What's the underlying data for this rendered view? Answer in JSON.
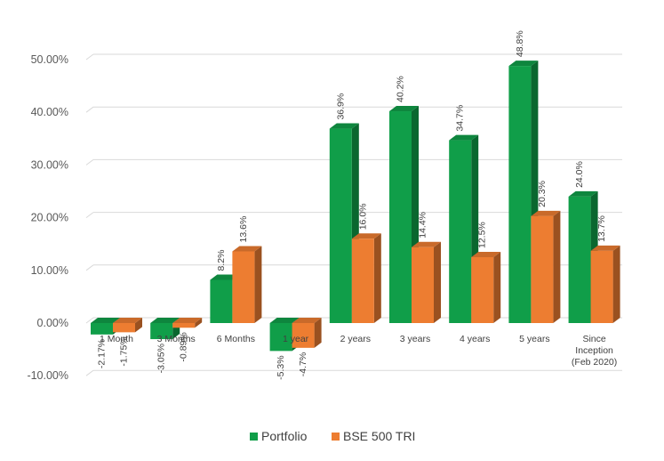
{
  "chart_data": {
    "type": "bar",
    "categories": [
      "1 Month",
      "3 Months",
      "6 Months",
      "1 year",
      "2 years",
      "3 years",
      "4 years",
      "5 years",
      "Since Inception (Feb 2020)"
    ],
    "series": [
      {
        "name": "Portfolio",
        "color": "#109e49",
        "values": [
          -2.17,
          -3.05,
          8.2,
          -5.3,
          36.9,
          40.2,
          34.7,
          48.8,
          24.0
        ],
        "labels": [
          "-2.17%",
          "-3.05%",
          "8.2%",
          "-5.3%",
          "36.9%",
          "40.2%",
          "34.7%",
          "48.8%",
          "24.0%"
        ]
      },
      {
        "name": "BSE 500 TRI",
        "color": "#ed7d31",
        "values": [
          -1.75,
          -0.89,
          13.6,
          -4.7,
          16.0,
          14.4,
          12.5,
          20.3,
          13.7
        ],
        "labels": [
          "-1.75%",
          "-0.89%",
          "13.6%",
          "-4.7%",
          "16.0%",
          "14.4%",
          "12.5%",
          "20.3%",
          "13.7%"
        ]
      }
    ],
    "title": "",
    "xlabel": "",
    "ylabel": "",
    "ylim": [
      -10,
      50
    ],
    "yticks": [
      "-10.00%",
      "0.00%",
      "10.00%",
      "20.00%",
      "30.00%",
      "40.00%",
      "50.00%"
    ],
    "grid": true,
    "legend_position": "bottom",
    "style": "3d-column"
  }
}
